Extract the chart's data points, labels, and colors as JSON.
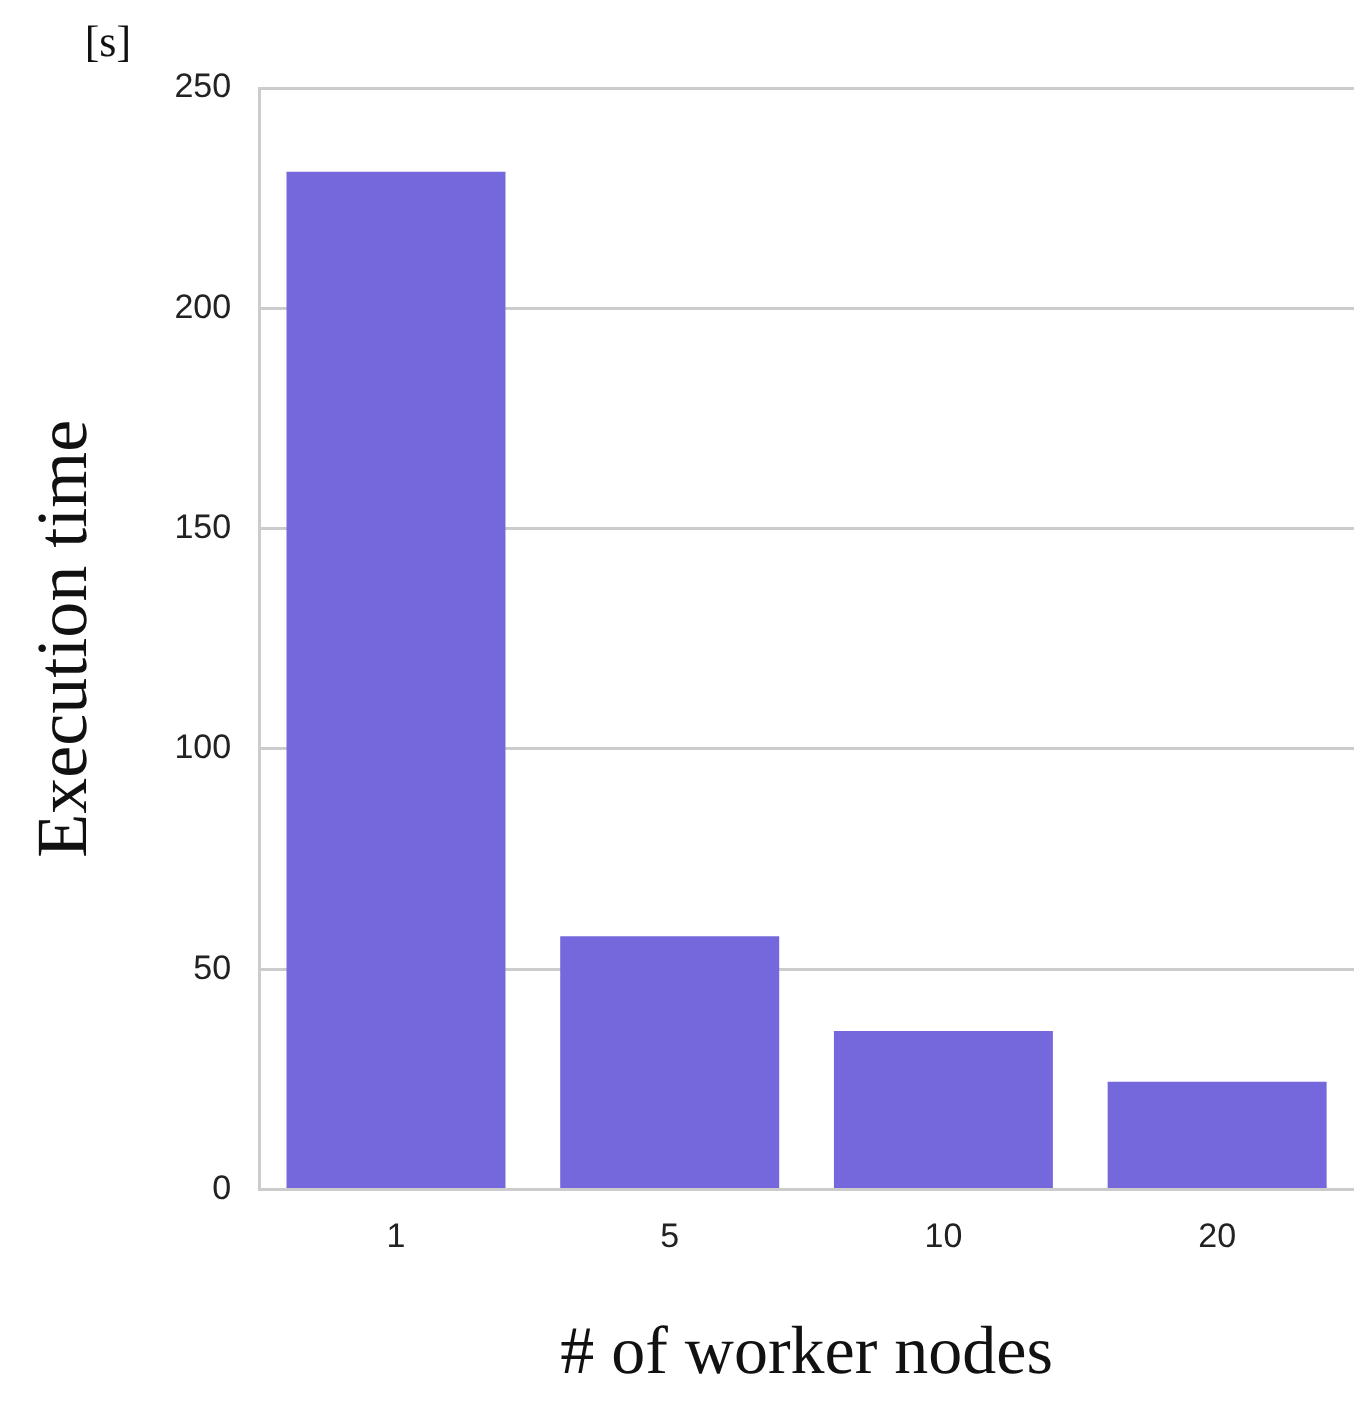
{
  "chart_data": {
    "type": "bar",
    "xlabel": "# of worker nodes",
    "ylabel": "Execution time",
    "annotations": [
      "[s]"
    ],
    "categories": [
      "1",
      "5",
      "10",
      "20"
    ],
    "series": [
      {
        "color": "#7468dc",
        "values": [
          231,
          57.5,
          36,
          24.5
        ]
      }
    ],
    "ylim": [
      0,
      250
    ],
    "yticks": [
      0,
      50,
      100,
      150,
      200,
      250
    ],
    "grid": "y",
    "legend": false
  }
}
